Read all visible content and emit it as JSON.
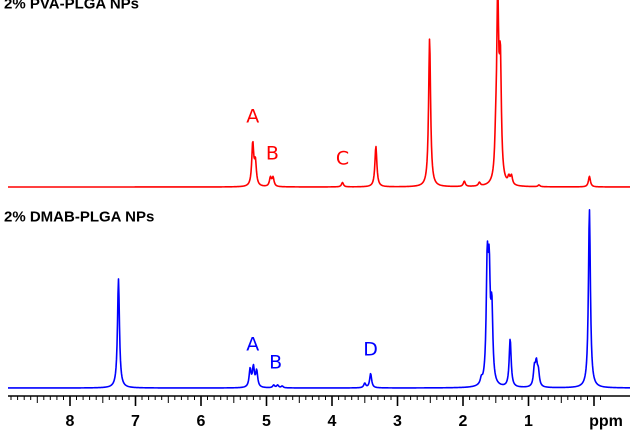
{
  "chart_data": [
    {
      "type": "line",
      "title": "2% PVA-PLGA NPs",
      "xlabel": "ppm",
      "color": "#ff0000",
      "xlim": [
        9.0,
        -0.5
      ],
      "x_reversed": true,
      "annotations": [
        {
          "text": "A",
          "x": 5.21
        },
        {
          "text": "B",
          "x": 4.91
        },
        {
          "text": "C",
          "x": 3.84
        }
      ],
      "peaks": [
        {
          "x": 5.21,
          "height": 0.24
        },
        {
          "x": 5.17,
          "height": 0.13
        },
        {
          "x": 4.94,
          "height": 0.05
        },
        {
          "x": 4.9,
          "height": 0.05
        },
        {
          "x": 3.84,
          "height": 0.025
        },
        {
          "x": 3.33,
          "height": 0.23
        },
        {
          "x": 2.51,
          "height": 0.84
        },
        {
          "x": 1.98,
          "height": 0.03
        },
        {
          "x": 1.75,
          "height": 0.02
        },
        {
          "x": 1.5,
          "height": 0.17
        },
        {
          "x": 1.47,
          "height": 1.0
        },
        {
          "x": 1.43,
          "height": 0.65
        },
        {
          "x": 1.3,
          "height": 0.04
        },
        {
          "x": 1.26,
          "height": 0.05
        },
        {
          "x": 0.84,
          "height": 0.01
        },
        {
          "x": 0.07,
          "height": 0.06
        }
      ]
    },
    {
      "type": "line",
      "title": "2% DMAB-PLGA NPs",
      "xlabel": "ppm",
      "color": "#0000ff",
      "xlim": [
        9.0,
        -0.5
      ],
      "x_reversed": true,
      "annotations": [
        {
          "text": "A",
          "x": 5.21
        },
        {
          "text": "B",
          "x": 4.86
        },
        {
          "text": "D",
          "x": 3.41
        }
      ],
      "peaks": [
        {
          "x": 7.26,
          "height": 0.61
        },
        {
          "x": 5.25,
          "height": 0.1
        },
        {
          "x": 5.2,
          "height": 0.11
        },
        {
          "x": 5.15,
          "height": 0.09
        },
        {
          "x": 4.89,
          "height": 0.015
        },
        {
          "x": 4.83,
          "height": 0.015
        },
        {
          "x": 4.76,
          "height": 0.01
        },
        {
          "x": 3.5,
          "height": 0.025
        },
        {
          "x": 3.41,
          "height": 0.08
        },
        {
          "x": 1.72,
          "height": 0.03
        },
        {
          "x": 1.63,
          "height": 0.64
        },
        {
          "x": 1.6,
          "height": 0.56
        },
        {
          "x": 1.56,
          "height": 0.4
        },
        {
          "x": 1.28,
          "height": 0.27
        },
        {
          "x": 0.91,
          "height": 0.1
        },
        {
          "x": 0.88,
          "height": 0.12
        },
        {
          "x": 0.85,
          "height": 0.08
        },
        {
          "x": 0.07,
          "height": 1.0
        }
      ]
    }
  ],
  "axis": {
    "ticks": [
      8,
      7,
      6,
      5,
      4,
      3,
      2,
      1
    ],
    "unit_label": "ppm",
    "minor_step": 0.1
  }
}
